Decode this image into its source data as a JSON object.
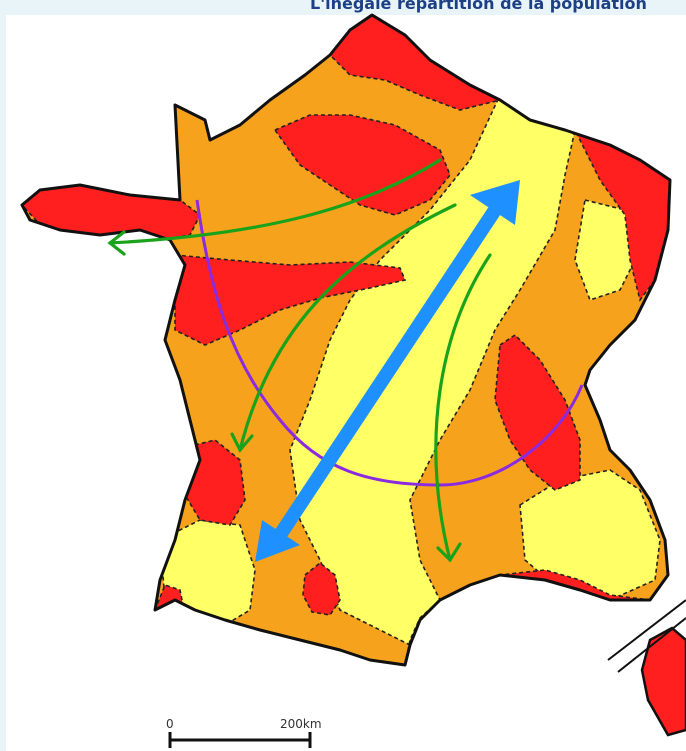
{
  "title": "L'inégale répartition de la population",
  "scale": {
    "zero_label": "0",
    "distance_label": "200km"
  },
  "colors": {
    "background": "#e8f4f8",
    "high": "#ff1f1f",
    "medium": "#f7a21d",
    "low": "#ffff66",
    "migration_arrow": "#1aa31a",
    "diagonal_arrow": "#1e90ff",
    "boundary_line": "#8a2be2"
  }
}
